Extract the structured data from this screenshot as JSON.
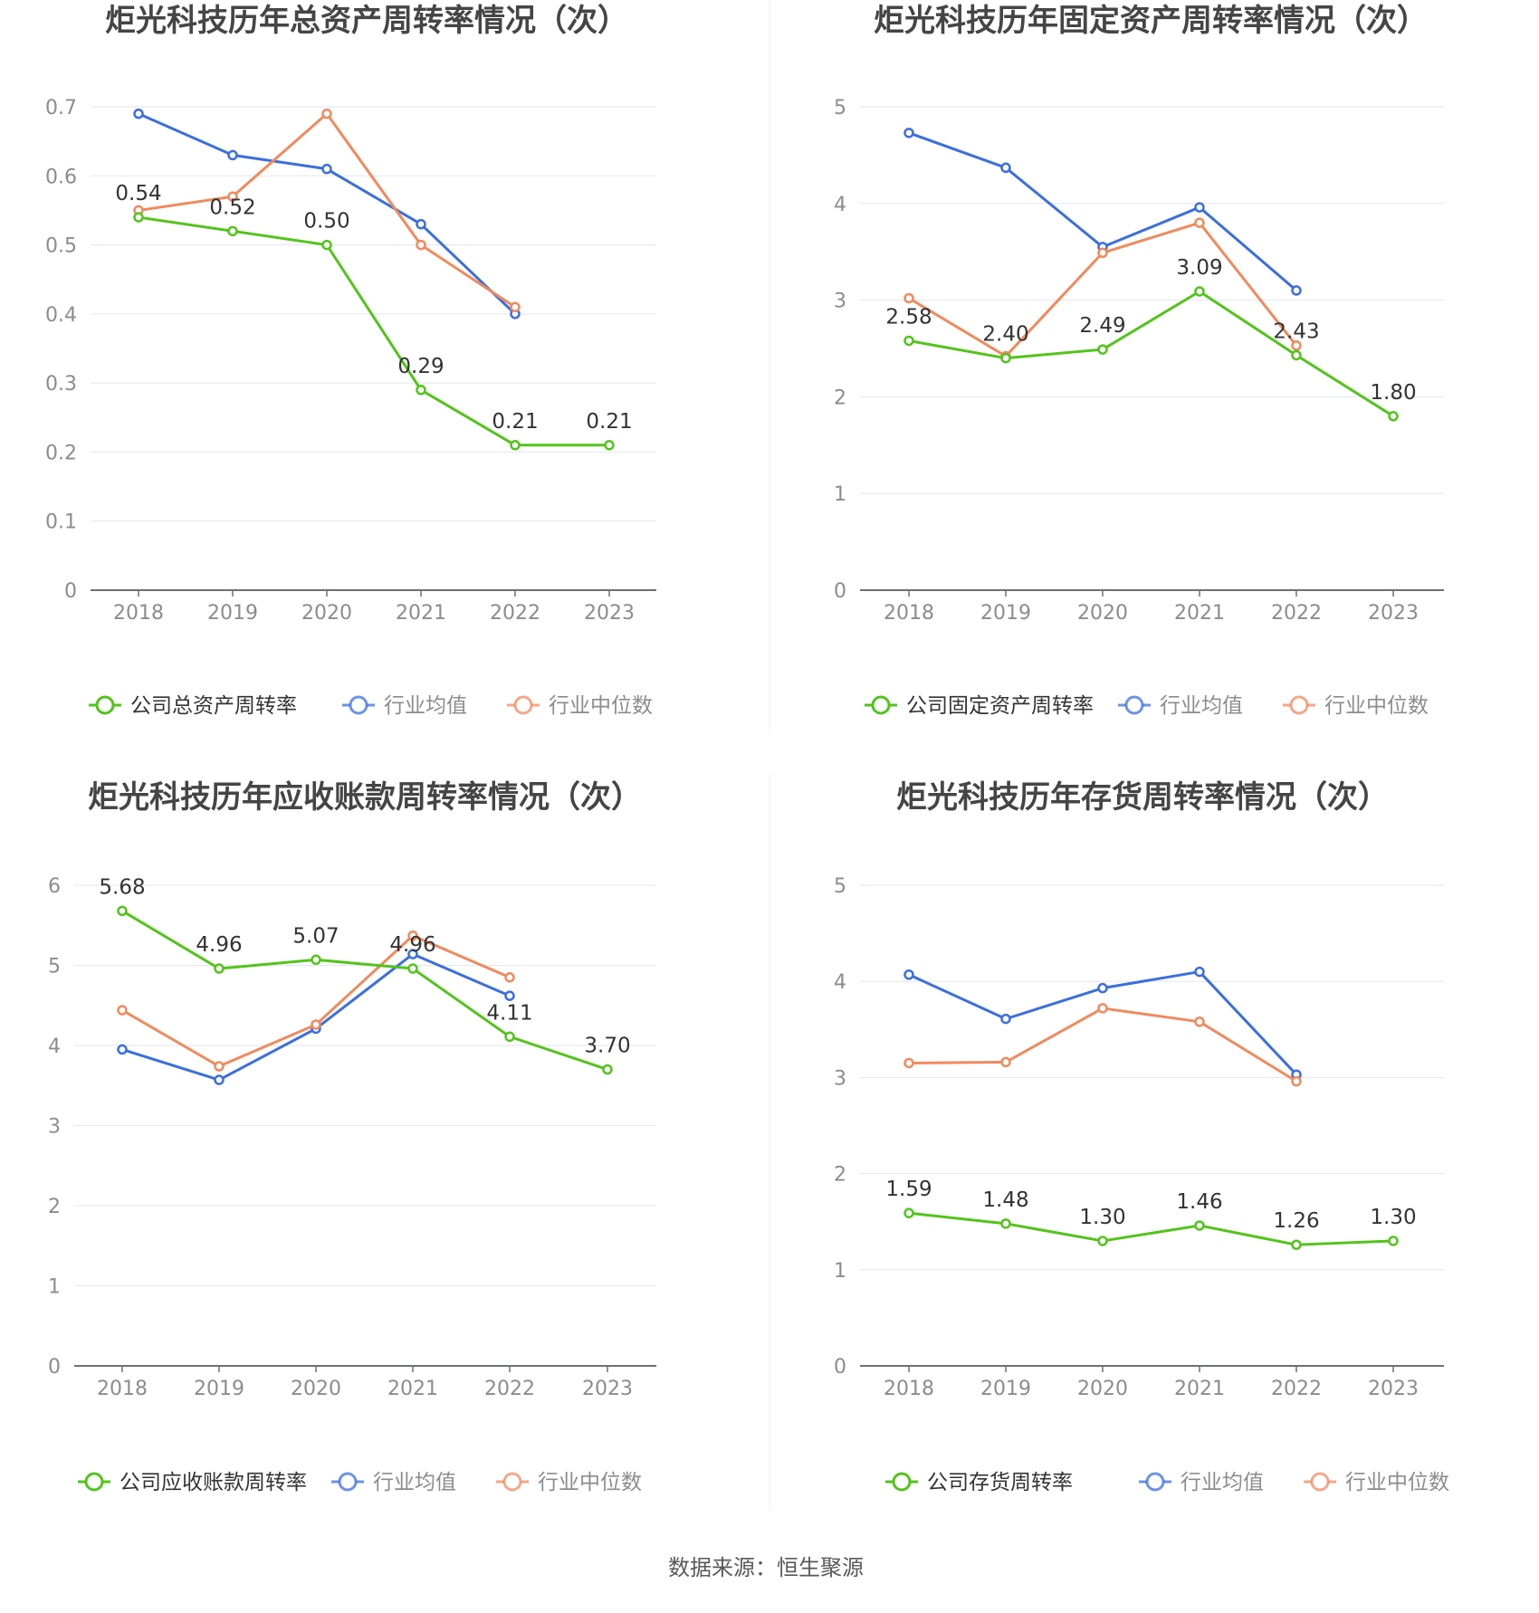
{
  "source_text": "数据来源：恒生聚源",
  "colors": {
    "company": "#52c41a",
    "avg": "#3b6fde",
    "median": "#f08a5d",
    "grid": "#e3e6f0",
    "axis": "#6e7079",
    "tick": "#8c8c8c",
    "title": "#454545"
  },
  "legend_common": {
    "avg": "行业均值",
    "median": "行业中位数"
  },
  "chart_data": [
    {
      "type": "line",
      "title": "炬光科技历年总资产周转率情况（次）",
      "categories": [
        "2018",
        "2019",
        "2020",
        "2021",
        "2022",
        "2023"
      ],
      "ylim": [
        0,
        0.7
      ],
      "yticks": [
        0,
        0.1,
        0.2,
        0.3,
        0.4,
        0.5,
        0.6,
        0.7
      ],
      "ytick_labels": [
        "0",
        "0.1",
        "0.2",
        "0.3",
        "0.4",
        "0.5",
        "0.6",
        "0.7"
      ],
      "series": [
        {
          "name": "公司总资产周转率",
          "key": "company",
          "values": [
            0.54,
            0.52,
            0.5,
            0.29,
            0.21,
            0.21
          ],
          "labels": [
            "0.54",
            "0.52",
            "0.50",
            "0.29",
            "0.21",
            "0.21"
          ]
        },
        {
          "name": "行业均值",
          "key": "avg",
          "values": [
            0.69,
            0.63,
            0.61,
            0.53,
            0.4,
            null
          ]
        },
        {
          "name": "行业中位数",
          "key": "median",
          "values": [
            0.55,
            0.57,
            0.69,
            0.5,
            0.41,
            null
          ]
        }
      ]
    },
    {
      "type": "line",
      "title": "炬光科技历年固定资产周转率情况（次）",
      "categories": [
        "2018",
        "2019",
        "2020",
        "2021",
        "2022",
        "2023"
      ],
      "ylim": [
        0,
        5
      ],
      "yticks": [
        0,
        1,
        2,
        3,
        4,
        5
      ],
      "ytick_labels": [
        "0",
        "1",
        "2",
        "3",
        "4",
        "5"
      ],
      "series": [
        {
          "name": "公司固定资产周转率",
          "key": "company",
          "values": [
            2.58,
            2.4,
            2.49,
            3.09,
            2.43,
            1.8
          ],
          "labels": [
            "2.58",
            "2.40",
            "2.49",
            "3.09",
            "2.43",
            "1.80"
          ]
        },
        {
          "name": "行业均值",
          "key": "avg",
          "values": [
            4.73,
            4.37,
            3.55,
            3.96,
            3.1,
            null
          ]
        },
        {
          "name": "行业中位数",
          "key": "median",
          "values": [
            3.02,
            2.42,
            3.49,
            3.8,
            2.53,
            null
          ]
        }
      ]
    },
    {
      "type": "line",
      "title": "炬光科技历年应收账款周转率情况（次）",
      "categories": [
        "2018",
        "2019",
        "2020",
        "2021",
        "2022",
        "2023"
      ],
      "ylim": [
        0,
        6
      ],
      "yticks": [
        0,
        1,
        2,
        3,
        4,
        5,
        6
      ],
      "ytick_labels": [
        "0",
        "1",
        "2",
        "3",
        "4",
        "5",
        "6"
      ],
      "series": [
        {
          "name": "公司应收账款周转率",
          "key": "company",
          "values": [
            5.68,
            4.96,
            5.07,
            4.96,
            4.11,
            3.7
          ],
          "labels": [
            "5.68",
            "4.96",
            "5.07",
            "4.96",
            "4.11",
            "3.70"
          ]
        },
        {
          "name": "行业均值",
          "key": "avg",
          "values": [
            3.95,
            3.57,
            4.21,
            5.14,
            4.62,
            null
          ]
        },
        {
          "name": "行业中位数",
          "key": "median",
          "values": [
            4.44,
            3.74,
            4.26,
            5.37,
            4.85,
            null
          ]
        }
      ]
    },
    {
      "type": "line",
      "title": "炬光科技历年存货周转率情况（次）",
      "categories": [
        "2018",
        "2019",
        "2020",
        "2021",
        "2022",
        "2023"
      ],
      "ylim": [
        0,
        5
      ],
      "yticks": [
        0,
        1,
        2,
        3,
        4,
        5
      ],
      "ytick_labels": [
        "0",
        "1",
        "2",
        "3",
        "4",
        "5"
      ],
      "series": [
        {
          "name": "公司存货周转率",
          "key": "company",
          "values": [
            1.59,
            1.48,
            1.3,
            1.46,
            1.26,
            1.3
          ],
          "labels": [
            "1.59",
            "1.48",
            "1.30",
            "1.46",
            "1.26",
            "1.30"
          ]
        },
        {
          "name": "行业均值",
          "key": "avg",
          "values": [
            4.07,
            3.61,
            3.93,
            4.1,
            3.03,
            null
          ]
        },
        {
          "name": "行业中位数",
          "key": "median",
          "values": [
            3.15,
            3.16,
            3.72,
            3.58,
            2.96,
            null
          ]
        }
      ]
    }
  ]
}
